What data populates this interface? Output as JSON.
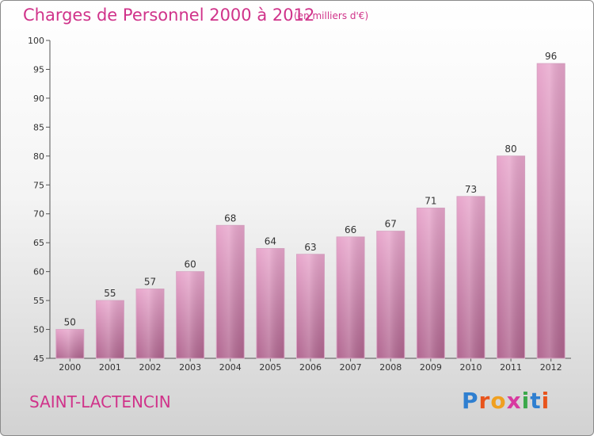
{
  "header": {
    "title": "Charges de Personnel 2000 à 2012",
    "subtitle": "(en milliers d'€)"
  },
  "footer": {
    "town": "SAINT-LACTENCIN",
    "logo_text": "Proxiti"
  },
  "colors": {
    "accent": "#d0338a",
    "bar_top": "#e8a6cc",
    "bar_bottom": "#b0658f"
  },
  "chart_data": {
    "type": "bar",
    "categories": [
      "2000",
      "2001",
      "2002",
      "2003",
      "2004",
      "2005",
      "2006",
      "2007",
      "2008",
      "2009",
      "2010",
      "2011",
      "2012"
    ],
    "values": [
      50,
      55,
      57,
      60,
      68,
      64,
      63,
      66,
      67,
      71,
      73,
      80,
      96
    ],
    "ylim": [
      45,
      100
    ],
    "yticks": [
      45,
      50,
      55,
      60,
      65,
      70,
      75,
      80,
      85,
      90,
      95,
      100
    ],
    "grid": false,
    "data_labels": true
  }
}
